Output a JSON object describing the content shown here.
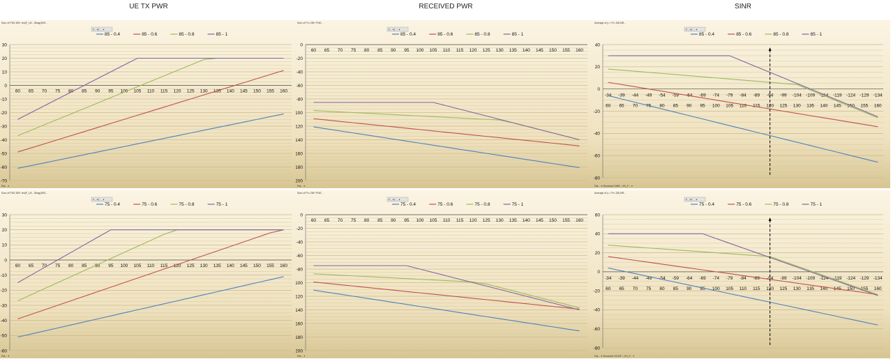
{
  "titles": [
    "UE TX PWR",
    "RECEIVED PWR",
    "SINR"
  ],
  "colors": {
    "s04": "#4f81bd",
    "s06": "#c0504d",
    "s08": "#9bbb59",
    "s1": "#8064a2",
    "arrow": "#000000"
  },
  "chart_data": [
    {
      "type": "line",
      "id": "p0",
      "title_tag": "Sum of PUE.DB+ ten(F_LB - Dbag(IMS...",
      "filter_tag": "F... ▾ƒ ... ▾",
      "page_tag": "Pat... ▾",
      "x": [
        60,
        65,
        70,
        75,
        80,
        85,
        90,
        95,
        100,
        105,
        110,
        115,
        120,
        125,
        130,
        135,
        140,
        145,
        150,
        155,
        160
      ],
      "xlim": [
        57,
        163
      ],
      "ylim": [
        -70,
        30
      ],
      "yticks": [
        30,
        20,
        10,
        0,
        -10,
        -20,
        -30,
        -40,
        -50,
        -60,
        -70
      ],
      "series": [
        {
          "name": "85 - 0.4",
          "color": "#4f81bd",
          "values": [
            -61,
            -59,
            -57,
            -55,
            -53,
            -51,
            -49,
            -47,
            -45,
            -43,
            -41,
            -39,
            -37,
            -35,
            -33,
            -31,
            -29,
            -27,
            -25,
            -23,
            -21
          ]
        },
        {
          "name": "85 - 0.6",
          "color": "#c0504d",
          "values": [
            -49,
            -46,
            -43,
            -40,
            -37,
            -34,
            -31,
            -28,
            -25,
            -22,
            -19,
            -16,
            -13,
            -10,
            -7,
            -4,
            -1,
            2,
            5,
            8,
            11
          ]
        },
        {
          "name": "85 - 0.8",
          "color": "#9bbb59",
          "values": [
            -37,
            -33,
            -29,
            -25,
            -21,
            -17,
            -13,
            -9,
            -5,
            -1,
            3,
            7,
            11,
            15,
            19,
            20,
            20,
            20,
            20,
            20,
            20
          ]
        },
        {
          "name": "85 - 1",
          "color": "#8064a2",
          "values": [
            -25,
            -20,
            -15,
            -10,
            -5,
            0,
            5,
            10,
            15,
            20,
            20,
            20,
            20,
            20,
            20,
            20,
            20,
            20,
            20,
            20,
            20
          ]
        }
      ]
    },
    {
      "type": "line",
      "id": "p1",
      "title_tag": "Sum of Pr=.DB+ PUE...",
      "filter_tag": "F... ▾ƒ ... ▾",
      "page_tag": "Pat... ▾",
      "x": [
        60,
        65,
        70,
        75,
        80,
        85,
        90,
        95,
        100,
        105,
        110,
        115,
        120,
        125,
        130,
        135,
        140,
        145,
        150,
        155,
        160
      ],
      "xlim": [
        57,
        163
      ],
      "ylim": [
        -200,
        0
      ],
      "yticks": [
        0,
        -20,
        -40,
        -60,
        -80,
        -100,
        -120,
        -140,
        -160,
        -180,
        -200
      ],
      "series": [
        {
          "name": "85 - 0.4",
          "color": "#4f81bd",
          "values": [
            -121,
            -124,
            -127,
            -130,
            -133,
            -136,
            -139,
            -142,
            -145,
            -148,
            -151,
            -154,
            -157,
            -160,
            -163,
            -166,
            -169,
            -172,
            -175,
            -178,
            -181
          ]
        },
        {
          "name": "85 - 0.6",
          "color": "#c0504d",
          "values": [
            -109,
            -111,
            -113,
            -115,
            -117,
            -119,
            -121,
            -123,
            -125,
            -127,
            -129,
            -131,
            -133,
            -135,
            -137,
            -139,
            -141,
            -143,
            -145,
            -147,
            -149
          ]
        },
        {
          "name": "85 - 0.8",
          "color": "#9bbb59",
          "values": [
            -97,
            -98,
            -99,
            -100,
            -101,
            -102,
            -103,
            -104,
            -105,
            -106,
            -107,
            -108,
            -109,
            -110,
            -111,
            -115,
            -120,
            -125,
            -130,
            -135,
            -140
          ]
        },
        {
          "name": "85 - 1",
          "color": "#8064a2",
          "values": [
            -85,
            -85,
            -85,
            -85,
            -85,
            -85,
            -85,
            -85,
            -85,
            -85,
            -90,
            -95,
            -100,
            -105,
            -110,
            -115,
            -120,
            -125,
            -130,
            -135,
            -140
          ]
        }
      ]
    },
    {
      "type": "line",
      "id": "p2",
      "title_tag": "Average of y = Pr=.DB-NR...",
      "filter_tag": "F... ▾ƒ ... ▾",
      "page_tag": "Pat... ▾  Received SINR = E0_F... ▾",
      "x": [
        60,
        65,
        70,
        75,
        80,
        85,
        90,
        95,
        100,
        105,
        110,
        115,
        120,
        125,
        130,
        135,
        140,
        145,
        150,
        155,
        160
      ],
      "x2labels": [
        "-34",
        "-39",
        "-44",
        "-49",
        "-54",
        "-59",
        "-64",
        "-69",
        "-74",
        "-79",
        "-84",
        "-89",
        "-94",
        "-99",
        "-104",
        "-109",
        "-114",
        "-119",
        "-124",
        "-129",
        "-134"
      ],
      "xlim": [
        58,
        162
      ],
      "ylim": [
        -80,
        40
      ],
      "yticks": [
        40,
        20,
        0,
        -20,
        -40,
        -60,
        -80
      ],
      "arrow_x": 120,
      "series": [
        {
          "name": "85 - 0.4",
          "color": "#4f81bd",
          "values": [
            -6,
            -9,
            -12,
            -15,
            -18,
            -21,
            -24,
            -27,
            -30,
            -33,
            -36,
            -39,
            -42,
            -45,
            -48,
            -51,
            -54,
            -57,
            -60,
            -63,
            -66
          ]
        },
        {
          "name": "85 - 0.6",
          "color": "#c0504d",
          "values": [
            6,
            4,
            2,
            0,
            -2,
            -4,
            -6,
            -8,
            -10,
            -12,
            -14,
            -16,
            -18,
            -20,
            -22,
            -24,
            -26,
            -28,
            -30,
            -32,
            -34
          ]
        },
        {
          "name": "85 - 0.8",
          "color": "#9bbb59",
          "values": [
            18,
            17,
            16,
            15,
            14,
            13,
            12,
            11,
            10,
            9,
            8,
            7,
            6,
            5,
            4,
            -1,
            -6,
            -11,
            -16,
            -21,
            -26
          ]
        },
        {
          "name": "85 - 1",
          "color": "#8064a2",
          "values": [
            30,
            30,
            30,
            30,
            30,
            30,
            30,
            30,
            30,
            30,
            25,
            20,
            15,
            10,
            5,
            0,
            -5,
            -10,
            -15,
            -20,
            -25
          ]
        }
      ]
    },
    {
      "type": "line",
      "id": "p3",
      "title_tag": "Sum of PUE.DB+ ten(F_LB - Dbag(IMS...",
      "filter_tag": "F... ▾ƒ ... ▾",
      "page_tag": "Pat... ▾",
      "x": [
        60,
        65,
        70,
        75,
        80,
        85,
        90,
        95,
        100,
        105,
        110,
        115,
        120,
        125,
        130,
        135,
        140,
        145,
        150,
        155,
        160
      ],
      "xlim": [
        57,
        163
      ],
      "ylim": [
        -60,
        30
      ],
      "yticks": [
        30,
        20,
        10,
        0,
        -10,
        -20,
        -30,
        -40,
        -50,
        -60
      ],
      "series": [
        {
          "name": "75 - 0.4",
          "color": "#4f81bd",
          "values": [
            -51,
            -49,
            -47,
            -45,
            -43,
            -41,
            -39,
            -37,
            -35,
            -33,
            -31,
            -29,
            -27,
            -25,
            -23,
            -21,
            -19,
            -17,
            -15,
            -13,
            -11
          ]
        },
        {
          "name": "75 - 0.6",
          "color": "#c0504d",
          "values": [
            -39,
            -36,
            -33,
            -30,
            -27,
            -24,
            -21,
            -18,
            -15,
            -12,
            -9,
            -6,
            -3,
            0,
            3,
            6,
            9,
            12,
            15,
            18,
            20
          ]
        },
        {
          "name": "75 - 0.8",
          "color": "#9bbb59",
          "values": [
            -27,
            -23,
            -19,
            -15,
            -11,
            -7,
            -3,
            1,
            5,
            9,
            13,
            17,
            20,
            20,
            20,
            20,
            20,
            20,
            20,
            20,
            20
          ]
        },
        {
          "name": "75 - 1",
          "color": "#8064a2",
          "values": [
            -15,
            -10,
            -5,
            0,
            5,
            10,
            15,
            20,
            20,
            20,
            20,
            20,
            20,
            20,
            20,
            20,
            20,
            20,
            20,
            20,
            20
          ]
        }
      ]
    },
    {
      "type": "line",
      "id": "p4",
      "title_tag": "Sum of Pr=.DB+ PUE...",
      "filter_tag": "F... ▾ƒ ... ▾",
      "page_tag": "Pat... ▾",
      "x": [
        60,
        65,
        70,
        75,
        80,
        85,
        90,
        95,
        100,
        105,
        110,
        115,
        120,
        125,
        130,
        135,
        140,
        145,
        150,
        155,
        160
      ],
      "xlim": [
        57,
        163
      ],
      "ylim": [
        -200,
        0
      ],
      "yticks": [
        0,
        -20,
        -40,
        -60,
        -80,
        -100,
        -120,
        -140,
        -160,
        -180,
        -200
      ],
      "series": [
        {
          "name": "75 - 0.4",
          "color": "#4f81bd",
          "values": [
            -111,
            -114,
            -117,
            -120,
            -123,
            -126,
            -129,
            -132,
            -135,
            -138,
            -141,
            -144,
            -147,
            -150,
            -153,
            -156,
            -159,
            -162,
            -165,
            -168,
            -171
          ]
        },
        {
          "name": "75 - 0.6",
          "color": "#c0504d",
          "values": [
            -99,
            -101,
            -103,
            -105,
            -107,
            -109,
            -111,
            -113,
            -115,
            -117,
            -119,
            -121,
            -123,
            -125,
            -127,
            -129,
            -131,
            -133,
            -135,
            -137,
            -139
          ]
        },
        {
          "name": "75 - 0.8",
          "color": "#9bbb59",
          "values": [
            -87,
            -88,
            -89,
            -90,
            -91,
            -92,
            -93,
            -94,
            -95,
            -96,
            -97,
            -98,
            -99,
            -102,
            -107,
            -112,
            -117,
            -122,
            -127,
            -132,
            -137
          ]
        },
        {
          "name": "75 - 1",
          "color": "#8064a2",
          "values": [
            -75,
            -75,
            -75,
            -75,
            -75,
            -75,
            -75,
            -75,
            -80,
            -85,
            -90,
            -95,
            -100,
            -105,
            -110,
            -115,
            -120,
            -125,
            -130,
            -135,
            -140
          ]
        }
      ]
    },
    {
      "type": "line",
      "id": "p5",
      "title_tag": "Average of y = Pr=.DB-NR...",
      "filter_tag": "F... ▾ƒ ... ▾",
      "page_tag": "Pat... ▾  Received SCINF = E0_F... ▾",
      "x": [
        60,
        65,
        70,
        75,
        80,
        85,
        90,
        95,
        100,
        105,
        110,
        115,
        120,
        125,
        130,
        135,
        140,
        145,
        150,
        155,
        160
      ],
      "x2labels": [
        "-34",
        "-39",
        "-44",
        "-49",
        "-54",
        "-59",
        "-64",
        "-69",
        "-74",
        "-79",
        "-84",
        "-89",
        "-94",
        "-99",
        "-104",
        "-109",
        "-114",
        "-119",
        "-124",
        "-129",
        "-134"
      ],
      "xlim": [
        58,
        162
      ],
      "ylim": [
        -80,
        60
      ],
      "yticks": [
        60,
        40,
        20,
        0,
        -20,
        -40,
        -60,
        -80
      ],
      "arrow_x": 120,
      "series": [
        {
          "name": "75 - 0.4",
          "color": "#4f81bd",
          "values": [
            4,
            1,
            -2,
            -5,
            -8,
            -11,
            -14,
            -17,
            -20,
            -23,
            -26,
            -29,
            -32,
            -35,
            -38,
            -41,
            -44,
            -47,
            -50,
            -53,
            -56
          ]
        },
        {
          "name": "75 - 0.6",
          "color": "#c0504d",
          "values": [
            16,
            14,
            12,
            10,
            8,
            6,
            4,
            2,
            0,
            -2,
            -4,
            -6,
            -8,
            -10,
            -12,
            -14,
            -16,
            -18,
            -20,
            -22,
            -24
          ]
        },
        {
          "name": "75 - 0.8",
          "color": "#9bbb59",
          "values": [
            28,
            27,
            26,
            25,
            24,
            23,
            22,
            21,
            20,
            19,
            18,
            17,
            16,
            11,
            6,
            1,
            -4,
            -9,
            -14,
            -19,
            -24
          ]
        },
        {
          "name": "75 - 1",
          "color": "#8064a2",
          "values": [
            40,
            40,
            40,
            40,
            40,
            40,
            40,
            40,
            35,
            30,
            25,
            20,
            15,
            10,
            5,
            0,
            -5,
            -10,
            -15,
            -20,
            -25
          ]
        }
      ]
    }
  ]
}
